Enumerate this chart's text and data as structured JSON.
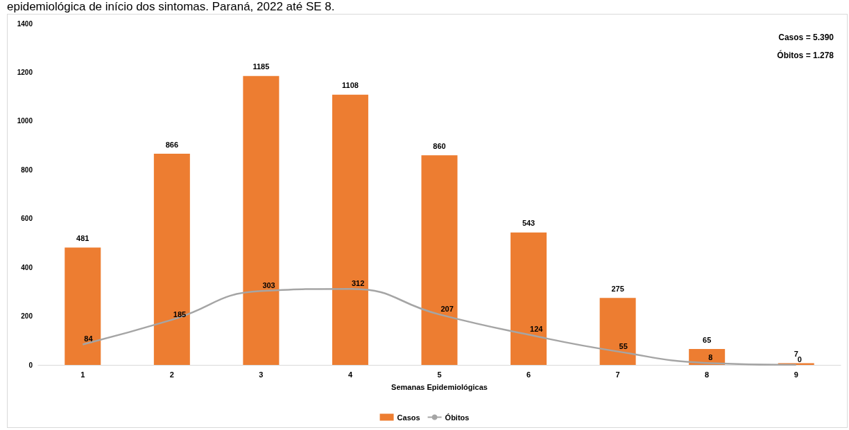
{
  "chart_data": {
    "type": "bar",
    "title": "epidemiológica de início dos sintomas. Paraná, 2022 até SE 8.",
    "xlabel": "Semanas Epidemiológicas",
    "categories": [
      "1",
      "2",
      "3",
      "4",
      "5",
      "6",
      "7",
      "8",
      "9"
    ],
    "series": [
      {
        "name": "Casos",
        "color": "#ed7d31",
        "values": [
          481,
          866,
          1185,
          1108,
          860,
          543,
          275,
          65,
          7
        ]
      },
      {
        "name": "Óbitos",
        "type": "line",
        "color": "#a5a5a5",
        "values": [
          84,
          185,
          303,
          312,
          207,
          124,
          55,
          8,
          0
        ]
      }
    ],
    "ylim": [
      0,
      1400
    ],
    "yticks": [
      0,
      200,
      400,
      600,
      800,
      1000,
      1200,
      1400
    ],
    "grid": false,
    "legend": "bottom",
    "data_labels": true,
    "marker": "none",
    "annotations": [
      "Casos = 5.390",
      "Óbitos = 1.278"
    ]
  }
}
